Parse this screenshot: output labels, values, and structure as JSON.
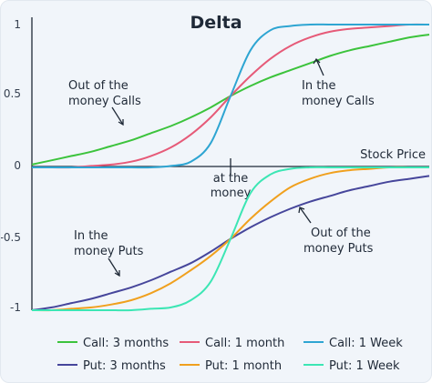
{
  "chart_data": {
    "type": "line",
    "title": "Delta",
    "xlabel": "Stock Price",
    "ylabel": "",
    "ylim": [
      -1,
      1
    ],
    "yticks": [
      "1",
      "0.5",
      "0",
      "-0.5",
      "-1"
    ],
    "x_marker": {
      "label_line1": "at the",
      "label_line2": "money"
    },
    "x": [
      0,
      5,
      10,
      15,
      20,
      25,
      30,
      35,
      40,
      45,
      50,
      55,
      60,
      65,
      70,
      75,
      80,
      85,
      90,
      95,
      100
    ],
    "series": [
      {
        "name": "Call: 3 months",
        "color": "#3cc33c",
        "values": [
          0.02,
          0.05,
          0.08,
          0.11,
          0.15,
          0.19,
          0.24,
          0.29,
          0.35,
          0.42,
          0.5,
          0.57,
          0.63,
          0.68,
          0.73,
          0.78,
          0.82,
          0.85,
          0.88,
          0.91,
          0.93
        ]
      },
      {
        "name": "Call: 1 month",
        "color": "#e65a78",
        "values": [
          0.0,
          0.0,
          0.0,
          0.01,
          0.02,
          0.04,
          0.08,
          0.14,
          0.23,
          0.35,
          0.5,
          0.64,
          0.76,
          0.85,
          0.91,
          0.95,
          0.97,
          0.98,
          0.99,
          1.0,
          1.0
        ]
      },
      {
        "name": "Call: 1 Week",
        "color": "#2ea5d2",
        "values": [
          0.0,
          0.0,
          0.0,
          0.0,
          0.0,
          0.0,
          0.0,
          0.01,
          0.04,
          0.17,
          0.5,
          0.82,
          0.96,
          0.99,
          1.0,
          1.0,
          1.0,
          1.0,
          1.0,
          1.0,
          1.0
        ]
      },
      {
        "name": "Put: 3 months",
        "color": "#46469b",
        "values": [
          -1.0,
          -0.98,
          -0.95,
          -0.92,
          -0.88,
          -0.84,
          -0.79,
          -0.73,
          -0.67,
          -0.59,
          -0.5,
          -0.42,
          -0.35,
          -0.29,
          -0.24,
          -0.2,
          -0.16,
          -0.13,
          -0.1,
          -0.08,
          -0.06
        ]
      },
      {
        "name": "Put: 1 month",
        "color": "#f0a01e",
        "values": [
          -1.0,
          -1.0,
          -0.99,
          -0.98,
          -0.96,
          -0.93,
          -0.88,
          -0.81,
          -0.72,
          -0.62,
          -0.5,
          -0.36,
          -0.24,
          -0.14,
          -0.08,
          -0.04,
          -0.02,
          -0.01,
          0.0,
          0.0,
          0.0
        ]
      },
      {
        "name": "Put: 1 Week",
        "color": "#3ce6b4",
        "values": [
          -1.0,
          -1.0,
          -1.0,
          -1.0,
          -1.0,
          -1.0,
          -0.99,
          -0.98,
          -0.93,
          -0.8,
          -0.5,
          -0.18,
          -0.05,
          -0.01,
          0.0,
          0.0,
          0.0,
          0.0,
          0.0,
          0.0,
          0.0
        ]
      }
    ],
    "annotations": [
      {
        "line1": "Out of the",
        "line2": "money Calls"
      },
      {
        "line1": "In the",
        "line2": "money Calls"
      },
      {
        "line1": "In the",
        "line2": "money Puts"
      },
      {
        "line1": "Out of the",
        "line2": "money Puts"
      }
    ],
    "legend": {
      "placement": "bottom",
      "entries": [
        "Call: 3 months",
        "Call: 1 month",
        "Call: 1 Week",
        "Put: 3 months",
        "Put: 1 month",
        "Put: 1 Week"
      ]
    }
  }
}
